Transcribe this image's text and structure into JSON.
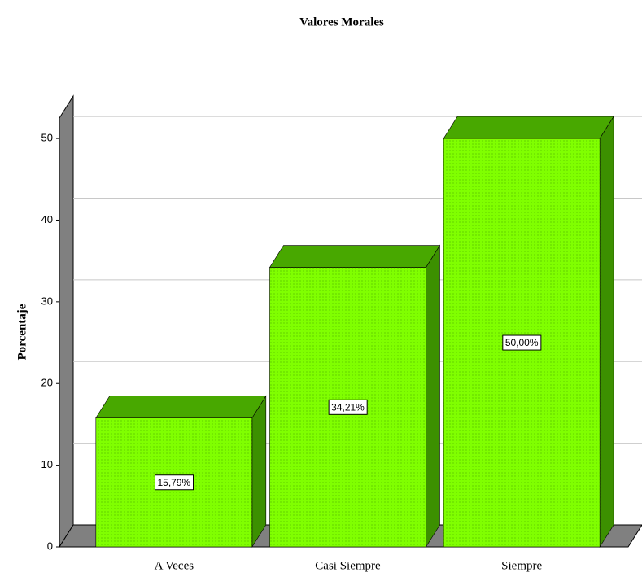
{
  "chart_data": {
    "type": "bar3d",
    "title": "Valores Morales",
    "ylabel": "Porcentaje",
    "categories": [
      "A Veces",
      "Casi Siempre",
      "Siempre"
    ],
    "values": [
      15.79,
      34.21,
      50.0
    ],
    "value_labels": [
      "15,79%",
      "34,21%",
      "50,00%"
    ],
    "color": "#80ff00",
    "ylim": [
      0,
      52.5
    ],
    "yticks": [
      0,
      10,
      20,
      30,
      40,
      50
    ],
    "grid": true
  }
}
